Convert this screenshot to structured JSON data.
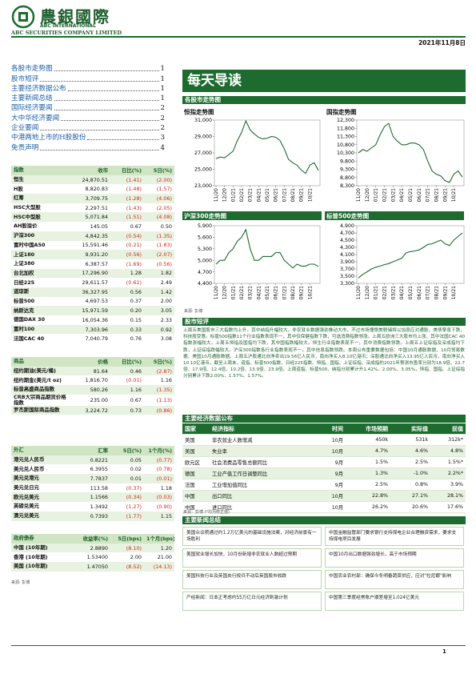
{
  "header": {
    "logo_cn": "農銀國際",
    "logo_en1": "ABC INTERNATIONAL",
    "logo_en2": "ABC SECURITIES COMPANY LIMITED",
    "date": "2021年11月8日"
  },
  "toc": [
    {
      "title": "各股市走势图",
      "page": "1"
    },
    {
      "title": "股市短评",
      "page": "1"
    },
    {
      "title": "主要经济数据公布",
      "page": "1"
    },
    {
      "title": "主要新闻总结",
      "page": "1"
    },
    {
      "title": "国际经济要闻",
      "page": "2"
    },
    {
      "title": "大中华经济要闻",
      "page": "2"
    },
    {
      "title": "企业要闻",
      "page": "2"
    },
    {
      "title": "中港两地上市的H股股份",
      "page": "3"
    },
    {
      "title": "免责声明",
      "page": "4"
    }
  ],
  "index_table": {
    "headers": [
      "指数",
      "收市",
      "日比(%)",
      "5日(%)"
    ],
    "rows": [
      [
        "恒生",
        "24,870.51",
        "(1.41)",
        "(2.00)"
      ],
      [
        "H股",
        "8,820.83",
        "(1.48)",
        "(1.57)"
      ],
      [
        "红筹",
        "3,709.75",
        "(1.28)",
        "(4.06)"
      ],
      [
        "HSC大型股",
        "2,297.51",
        "(1.43)",
        "(2.05)"
      ],
      [
        "HSC中型股",
        "5,071.84",
        "(1.51)",
        "(4.08)"
      ],
      [
        "AH股溢价",
        "145.05",
        "0.67",
        "0.50"
      ],
      [
        "沪深300",
        "4,842.35",
        "(0.54)",
        "(1.35)"
      ],
      [
        "富时中国A50",
        "15,591.46",
        "(0.21)",
        "(1.83)"
      ],
      [
        "上证180",
        "9,931.20",
        "(0.56)",
        "(2.07)"
      ],
      [
        "上证380",
        "6,387.57",
        "(1.69)",
        "(0.56)"
      ],
      [
        "台北加权",
        "17,296.90",
        "1.28",
        "1.82"
      ],
      [
        "日经225",
        "29,611.57",
        "(0.61)",
        "2.49"
      ],
      [
        "道琼斯",
        "36,327.95",
        "0.56",
        "1.42"
      ],
      [
        "标普500",
        "4,697.53",
        "0.37",
        "2.00"
      ],
      [
        "纳斯达克",
        "15,971.59",
        "0.20",
        "3.05"
      ],
      [
        "德国DAX 30",
        "16,054.36",
        "0.15",
        "2.33"
      ],
      [
        "富时100",
        "7,303.96",
        "0.33",
        "0.92"
      ],
      [
        "法国CAC 40",
        "7,040.79",
        "0.76",
        "3.08"
      ]
    ]
  },
  "commodity_table": {
    "headers": [
      "商品",
      "价格",
      "日比(%)",
      "5日(%)"
    ],
    "rows": [
      [
        "纽约期油(美元/桶)",
        "81.64",
        "0.46",
        "(2.87)"
      ],
      [
        "纽约期金(美元/t oz)",
        "1,816.70",
        "(0.01)",
        "1.16"
      ],
      [
        "标普高盛商品指数",
        "580.26",
        "1.16",
        "(1.35)"
      ],
      [
        "CRB大宗商品期货价格指数",
        "235.00",
        "0.67",
        "(1.13)"
      ],
      [
        "罗杰斯国际商品指数",
        "3,224.72",
        "0.73",
        "(0.86)"
      ]
    ]
  },
  "fx_table": {
    "headers": [
      "外汇",
      "汇率",
      "5日(%)",
      "1个月(%)"
    ],
    "rows": [
      [
        "港元兑人民币",
        "0.8221",
        "0.05",
        "(0.77)"
      ],
      [
        "美元兑人民币",
        "6.3955",
        "0.02",
        "(0.78)"
      ],
      [
        "美元兑港元",
        "7.7837",
        "0.01",
        "(0.01)"
      ],
      [
        "美元兑日元",
        "113.58",
        "(0.37)",
        "1.18"
      ],
      [
        "欧元兑美元",
        "1.1566",
        "(0.34)",
        "(0.03)"
      ],
      [
        "英磅兑美元",
        "1.3492",
        "(1.27)",
        "(0.90)"
      ],
      [
        "澳元兑美元",
        "0.7393",
        "(1.77)",
        "1.15"
      ]
    ]
  },
  "bond_table": {
    "headers": [
      "政府债券",
      "收益率(%)",
      "5日(bps)",
      "1个月(bps)"
    ],
    "rows": [
      [
        "中国 (10年期)",
        "2.8890",
        "(8.10)",
        "1.20"
      ],
      [
        "香港 (10年期)",
        "1.53400",
        "2.00",
        "21.00"
      ],
      [
        "美国 (10年期)",
        "1.47050",
        "(8.52)",
        "(14.13)"
      ]
    ]
  },
  "left_source": "来源: 彭博",
  "banner": "每天导读",
  "charts_heading": "各股市走势图",
  "chart_data": [
    {
      "type": "line",
      "title": "恒指走势图",
      "color": "#1d6b2f",
      "categories": [
        "11/20",
        null,
        "12/20",
        null,
        "01/21",
        null,
        "02/21",
        null,
        "03/21",
        null,
        "04/21",
        null,
        "05/21",
        null,
        "06/21",
        null,
        "07/21",
        null,
        "08/21",
        null,
        "09/21",
        null,
        "10/21",
        null,
        null
      ],
      "values": [
        26300,
        26500,
        26400,
        26800,
        27200,
        28500,
        29500,
        30900,
        29800,
        29300,
        28900,
        28700,
        28800,
        29000,
        28900,
        28500,
        27500,
        26200,
        25800,
        25500,
        24900,
        24500,
        25500,
        25800,
        24870
      ],
      "ylim": [
        23000,
        31000
      ],
      "yticks": [
        {
          "value": 23000,
          "label": "23,000"
        },
        {
          "value": 25000,
          "label": "25,000"
        },
        {
          "value": 27000,
          "label": "27,000"
        },
        {
          "value": 29000,
          "label": "29,000"
        },
        {
          "value": 31000,
          "label": "31,000"
        }
      ]
    },
    {
      "type": "line",
      "title": "国指走势图",
      "color": "#1d6b2f",
      "categories": [
        "11/20",
        null,
        "12/20",
        null,
        "01/21",
        null,
        "02/21",
        null,
        "03/21",
        null,
        "04/21",
        null,
        "05/21",
        null,
        "06/21",
        null,
        "07/21",
        null,
        "08/21",
        null,
        "09/21",
        null,
        "10/21",
        null,
        null
      ],
      "values": [
        10300,
        10500,
        10400,
        10600,
        10800,
        11400,
        11900,
        12100,
        11300,
        11000,
        10800,
        10800,
        10900,
        10900,
        10800,
        10500,
        9800,
        9200,
        9000,
        8900,
        8600,
        8500,
        9000,
        9200,
        8821
      ],
      "ylim": [
        8300,
        12300
      ],
      "yticks": [
        {
          "value": 8300,
          "label": "8,300"
        },
        {
          "value": 8800,
          "label": "8,800"
        },
        {
          "value": 9300,
          "label": "9,300"
        },
        {
          "value": 9800,
          "label": "9,800"
        },
        {
          "value": 10300,
          "label": "10,300"
        },
        {
          "value": 10800,
          "label": "10,800"
        },
        {
          "value": 11300,
          "label": "11,300"
        },
        {
          "value": 11800,
          "label": "11,800"
        },
        {
          "value": 12300,
          "label": "12,300"
        }
      ]
    },
    {
      "type": "line",
      "title": "沪深300走势图",
      "color": "#1d6b2f",
      "categories": [
        "11/20",
        null,
        "12/20",
        null,
        "01/21",
        null,
        "02/21",
        null,
        "03/21",
        null,
        "04/21",
        null,
        "05/21",
        null,
        "06/21",
        null,
        "07/21",
        null,
        "08/21",
        null,
        "09/21",
        null,
        "10/21",
        null,
        null
      ],
      "values": [
        4900,
        5000,
        5000,
        5200,
        5300,
        5500,
        5600,
        5800,
        5300,
        5000,
        5000,
        5100,
        5100,
        5100,
        5200,
        5200,
        5000,
        4900,
        4800,
        4900,
        4850,
        4850,
        4900,
        4900,
        4842
      ],
      "ylim": [
        4400,
        5900
      ],
      "yticks": [
        {
          "value": 4400,
          "label": "4,400"
        },
        {
          "value": 4700,
          "label": "4,700"
        },
        {
          "value": 5000,
          "label": "5,000"
        },
        {
          "value": 5300,
          "label": "5,300"
        },
        {
          "value": 5600,
          "label": "5,600"
        },
        {
          "value": 5900,
          "label": "5,900"
        }
      ]
    },
    {
      "type": "line",
      "title": "标普500走势图",
      "color": "#1d6b2f",
      "categories": [
        "11/20",
        null,
        "12/20",
        null,
        "01/21",
        null,
        "02/21",
        null,
        "03/21",
        null,
        "04/21",
        null,
        "05/21",
        null,
        "06/21",
        null,
        "07/21",
        null,
        "08/21",
        null,
        "09/21",
        null,
        "10/21",
        null,
        null
      ],
      "values": [
        3450,
        3550,
        3620,
        3700,
        3750,
        3780,
        3820,
        3850,
        3900,
        3950,
        4000,
        4150,
        4180,
        4200,
        4230,
        4300,
        4380,
        4400,
        4450,
        4500,
        4400,
        4350,
        4500,
        4600,
        4698
      ],
      "ylim": [
        3300,
        4900
      ],
      "yticks": [
        {
          "value": 3300,
          "label": "3,300"
        },
        {
          "value": 3500,
          "label": "3,500"
        },
        {
          "value": 3700,
          "label": "3,700"
        },
        {
          "value": 3900,
          "label": "3,900"
        },
        {
          "value": 4100,
          "label": "4,100"
        },
        {
          "value": 4300,
          "label": "4,300"
        },
        {
          "value": 4500,
          "label": "4,500"
        },
        {
          "value": 4700,
          "label": "4,700"
        },
        {
          "value": 4900,
          "label": "4,900"
        }
      ]
    }
  ],
  "charts_source": "来源: 彭博",
  "commentary": {
    "heading": "股市短评",
    "text": "上周五美国股市三大指数均上升，其中纳指升幅较大。非农就业数据强劲推动大市，不过市场憧憬美联储将以加息应对通胀，美债孳息下跌，科技股受惠。标普500指数11个行业指数表现不一，其中仅保健指数下跌，可选消费指数领涨。上周五欧洲三大股市均上涨，其中法国CAC 40指数涨幅较大。上周五恒指及国指均下跌，其中国指跌幅较大。恒生行业指数表现不一，其中消费指数领跌。上周五上证综指及深成指均下跌，上证综指跌幅较大。沪深300指数各行业指数表现不一，其中信息指数领跌。本周公布重要数据包括：中国10月通胀数据、10月贸易数据、美国10月通胀数据。上周五沪股通北向净卖出19.56亿人民币，南向净买入8.10亿港币；深股通北向净买入13.95亿人民币，南向净买入10.10亿港币。截至上周末，道指、标普500指数、日经225指数、恒指、国指、上证综指、深成指的2021年预测市盈率分别为18.9倍、22.7倍、17.9倍、12.4倍、10.2倍、13.9倍、23.9倍。上周道指、标普500、纳指分别累计升1.42%、2.00%、3.05%，恒指、国指、上证综指分别累计下跌2.00%、1.57%、1.57%。"
  },
  "econ": {
    "heading": "主要经济数据公布",
    "headers": [
      "国家",
      "经济指标",
      "时间",
      "市场预期",
      "实际值",
      "前值"
    ],
    "rows": [
      [
        "美国",
        "非农就业人数增减",
        "10月",
        "450k",
        "531k",
        "312k*"
      ],
      [
        "美国",
        "失业率",
        "10月",
        "4.7%",
        "4.6%",
        "4.8%"
      ],
      [
        "欧元区",
        "社会消费品零售总额同比",
        "9月",
        "1.5%",
        "2.5%",
        "1.5%*"
      ],
      [
        "德国",
        "工业产值工作日调整同比",
        "9月",
        "1.3%",
        "-1.0%",
        "2.2%*"
      ],
      [
        "法国",
        "工业增加值同比",
        "9月",
        "2.5%",
        "0.8%",
        "3.9%"
      ],
      [
        "中国",
        "出口同比",
        "10月",
        "22.8%",
        "27.1%",
        "28.1%"
      ],
      [
        "中国",
        "进口同比",
        "10月",
        "26.2%",
        "20.6%",
        "17.6%"
      ]
    ],
    "note": "来源：彭博 (*均为修正值)"
  },
  "news": {
    "heading": "主要新闻总结",
    "left": [
      "美国众议院通过约1.2万亿美元的基础设施法案，对经济前景有一场胜利",
      "美国就业增长加快，10月份新增非农就业人数超过预期",
      "美国科技行业及英国央行按兵不动后英国股市收跌",
      "产经新闻：日本正考虑约55万亿日元经济刺激计划"
    ],
    "right": [
      "中国金融监管部门要求银行支持煤电企业合理融资需求，要求支持煤电项目发展",
      "中国10月出口数据强劲增长，高于市场预期",
      "中国农业农村部：确保今冬明春蔬菜供应，应对\"拉尼娜\"影响",
      "中国第三季度经常账户顺差增至1,024亿美元"
    ]
  },
  "page_number": "1"
}
